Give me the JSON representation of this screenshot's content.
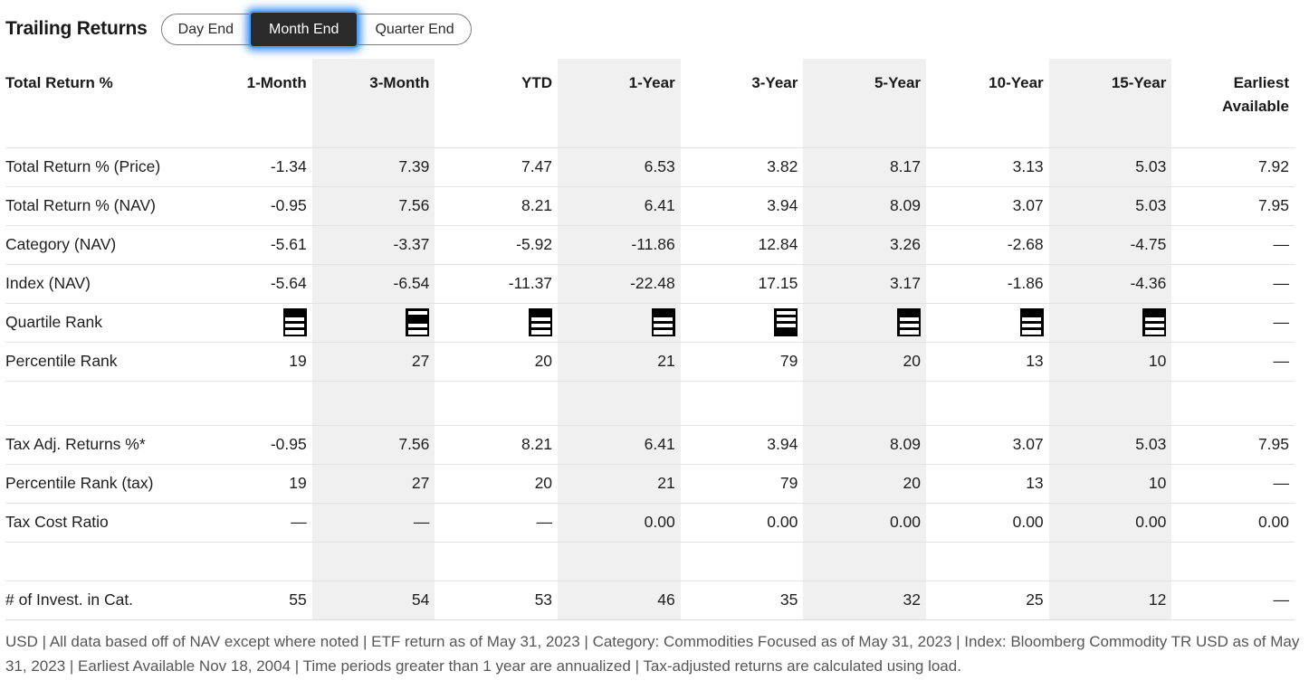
{
  "title": "Trailing Returns",
  "toggle": {
    "options": [
      {
        "label": "Day End",
        "selected": false
      },
      {
        "label": "Month End",
        "selected": true
      },
      {
        "label": "Quarter End",
        "selected": false
      }
    ]
  },
  "colors": {
    "selected_toggle_bg": "#2a2a2a",
    "focus_glow_blue": "#157cf0",
    "stripe_gray": "#f0f0f0",
    "row_border": "#e3e3e3",
    "text": "#1e1e1e",
    "footnote_gray": "#565656"
  },
  "table": {
    "label_header": "Total Return %",
    "columns": [
      {
        "label": "1-Month",
        "striped": false
      },
      {
        "label": "3-Month",
        "striped": true
      },
      {
        "label": "YTD",
        "striped": false
      },
      {
        "label": "1-Year",
        "striped": true
      },
      {
        "label": "3-Year",
        "striped": false
      },
      {
        "label": "5-Year",
        "striped": true
      },
      {
        "label": "10-Year",
        "striped": false
      },
      {
        "label": "15-Year",
        "striped": true
      },
      {
        "label": "Earliest Available",
        "striped": false
      }
    ],
    "rows": [
      {
        "label": "Total Return % (Price)",
        "type": "values",
        "values": [
          "-1.34",
          "7.39",
          "7.47",
          "6.53",
          "3.82",
          "8.17",
          "3.13",
          "5.03",
          "7.92"
        ]
      },
      {
        "label": "Total Return % (NAV)",
        "type": "values",
        "values": [
          "-0.95",
          "7.56",
          "8.21",
          "6.41",
          "3.94",
          "8.09",
          "3.07",
          "5.03",
          "7.95"
        ]
      },
      {
        "label": "Category (NAV)",
        "type": "values",
        "values": [
          "-5.61",
          "-3.37",
          "-5.92",
          "-11.86",
          "12.84",
          "3.26",
          "-2.68",
          "-4.75",
          "—"
        ]
      },
      {
        "label": "Index (NAV)",
        "type": "values",
        "values": [
          "-5.64",
          "-6.54",
          "-11.37",
          "-22.48",
          "17.15",
          "3.17",
          "-1.86",
          "-4.36",
          "—"
        ]
      },
      {
        "label": "Quartile Rank",
        "type": "quartile",
        "values": [
          1,
          2,
          1,
          1,
          4,
          1,
          1,
          1,
          "—"
        ]
      },
      {
        "label": "Percentile Rank",
        "type": "values",
        "values": [
          "19",
          "27",
          "20",
          "21",
          "79",
          "20",
          "13",
          "10",
          "—"
        ]
      },
      {
        "label": "",
        "type": "spacer",
        "values": [
          "",
          "",
          "",
          "",
          "",
          "",
          "",
          "",
          ""
        ]
      },
      {
        "label": "Tax Adj. Returns %*",
        "type": "values",
        "values": [
          "-0.95",
          "7.56",
          "8.21",
          "6.41",
          "3.94",
          "8.09",
          "3.07",
          "5.03",
          "7.95"
        ]
      },
      {
        "label": "Percentile Rank (tax)",
        "type": "values",
        "values": [
          "19",
          "27",
          "20",
          "21",
          "79",
          "20",
          "13",
          "10",
          "—"
        ]
      },
      {
        "label": "Tax Cost Ratio",
        "type": "values",
        "values": [
          "—",
          "—",
          "—",
          "0.00",
          "0.00",
          "0.00",
          "0.00",
          "0.00",
          "0.00"
        ]
      },
      {
        "label": "",
        "type": "spacer",
        "values": [
          "",
          "",
          "",
          "",
          "",
          "",
          "",
          "",
          ""
        ]
      },
      {
        "label": "# of Invest. in Cat.",
        "type": "values",
        "values": [
          "55",
          "54",
          "53",
          "46",
          "35",
          "32",
          "25",
          "12",
          "—"
        ]
      }
    ]
  },
  "footnote": "USD | All data based off of NAV except where noted | ETF return as of May 31, 2023 | Category: Commodities Focused as of May 31, 2023 | Index: Bloomberg Commodity TR USD as of May 31, 2023 | Earliest Available Nov 18, 2004 | Time periods greater than 1 year are annualized  | Tax-adjusted returns are calculated using load."
}
